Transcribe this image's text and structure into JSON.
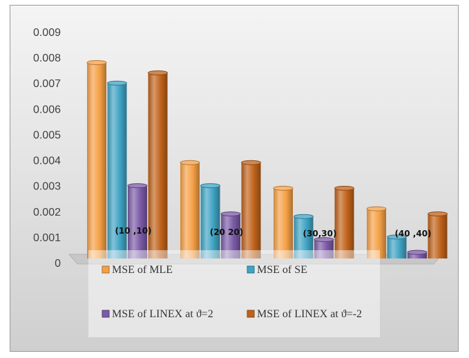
{
  "chart_data": {
    "type": "bar",
    "title": "",
    "xlabel": "",
    "ylabel": "",
    "ylim": [
      0,
      0.009
    ],
    "y_ticks": [
      "0",
      "0.001",
      "0.002",
      "0.003",
      "0.004",
      "0.005",
      "0.006",
      "0.007",
      "0.008",
      "0.009"
    ],
    "grid": false,
    "legend_position": "bottom",
    "categories": [
      "(10 ,10)",
      "(20 20)",
      "(30,30)",
      "(40 ,40)"
    ],
    "series": [
      {
        "name": "MSE of MLE",
        "values": [
          0.0078,
          0.0039,
          0.0029,
          0.0021
        ],
        "color": "#f5a046"
      },
      {
        "name": "MSE of SE",
        "values": [
          0.007,
          0.003,
          0.0018,
          0.001
        ],
        "color": "#3fa3c4"
      },
      {
        "name": "MSE of LINEX at ϑ=2",
        "values": [
          0.003,
          0.0019,
          0.0009,
          0.0004
        ],
        "color": "#7b5aa6"
      },
      {
        "name": "MSE of LINEX at ϑ=-2",
        "values": [
          0.0074,
          0.0039,
          0.0029,
          0.0019
        ],
        "color": "#c0621a"
      }
    ]
  }
}
